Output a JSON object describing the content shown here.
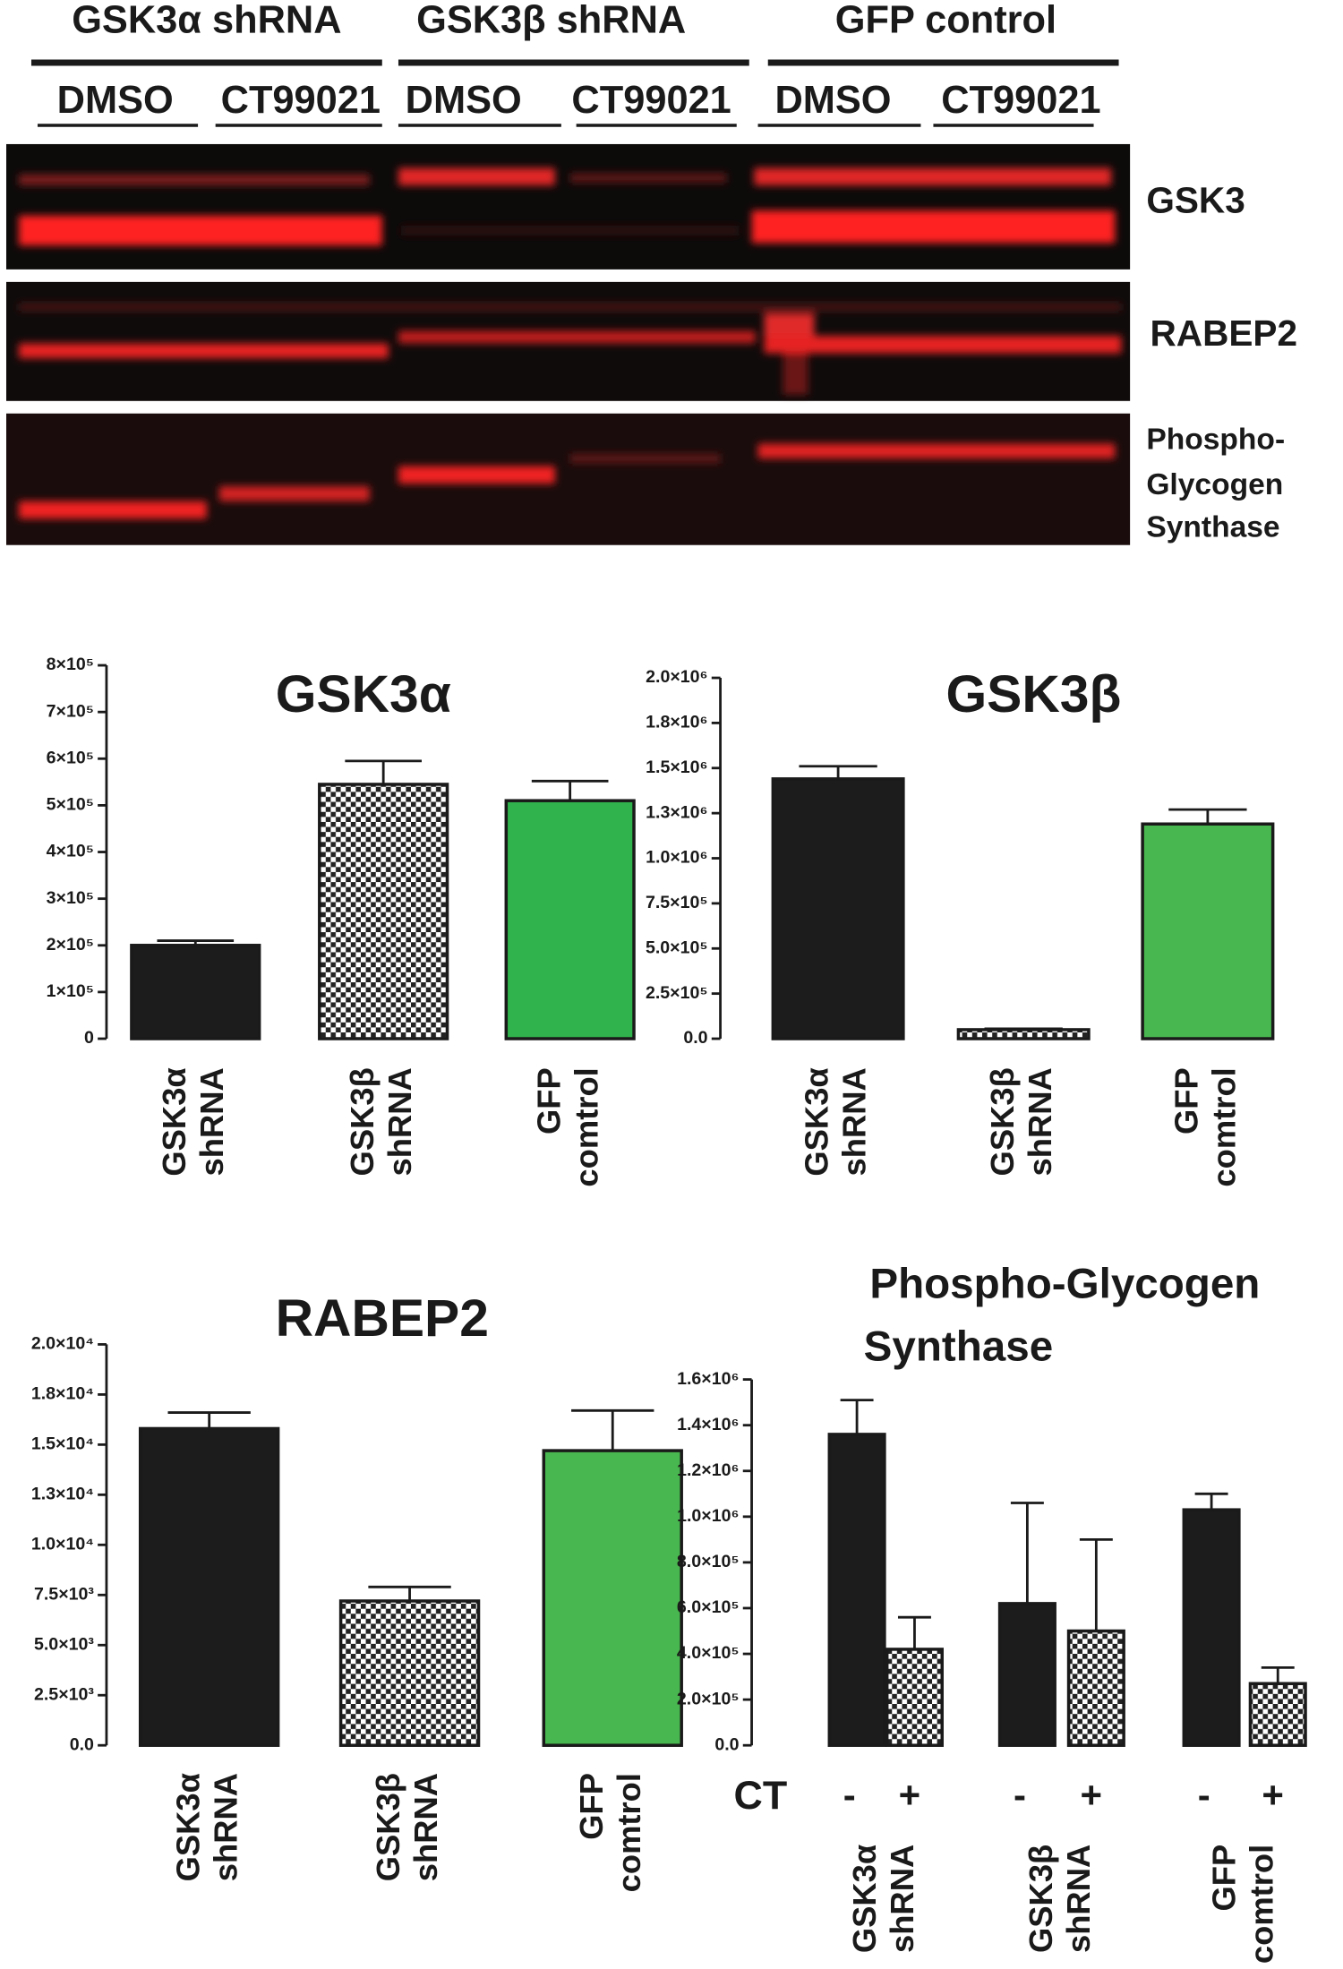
{
  "blot": {
    "groups": [
      "GSK3α shRNA",
      "GSK3β shRNA",
      "GFP control"
    ],
    "treatments": [
      "DMSO",
      "CT99021",
      "DMSO",
      "CT99021",
      "DMSO",
      "CT99021"
    ],
    "bands": [
      [
        "GSK3"
      ],
      [
        "RABEP2"
      ],
      [
        "Phospho-",
        "Glycogen",
        "Synthase"
      ]
    ]
  },
  "chart_data": [
    {
      "type": "bar",
      "title": [
        "GSK3α"
      ],
      "categories": [
        [
          "GSK3α",
          "shRNA"
        ],
        [
          "GSK3β",
          "shRNA"
        ],
        [
          "GFP",
          "comtrol"
        ]
      ],
      "series": [
        {
          "colors": [
            "#1c1c1c",
            "checker",
            "#30b24c"
          ],
          "values": [
            200000,
            545000,
            510000
          ],
          "errors": [
            10000,
            50000,
            42000
          ]
        }
      ],
      "ylim": [
        0,
        800000
      ],
      "yticks": [
        0,
        {
          "value": 100000,
          "label": "1×10⁵"
        },
        {
          "value": 200000,
          "label": "2×10⁵"
        },
        {
          "value": 300000,
          "label": "3×10⁵"
        },
        {
          "value": 400000,
          "label": "4×10⁵"
        },
        {
          "value": 500000,
          "label": "5×10⁵"
        },
        {
          "value": 600000,
          "label": "6×10⁵"
        },
        {
          "value": 700000,
          "label": "7×10⁵"
        },
        {
          "value": 800000,
          "label": "8×10⁵"
        }
      ]
    },
    {
      "type": "bar",
      "title": [
        "GSK3β"
      ],
      "categories": [
        [
          "GSK3α",
          "shRNA"
        ],
        [
          "GSK3β",
          "shRNA"
        ],
        [
          "GFP",
          "comtrol"
        ]
      ],
      "series": [
        {
          "colors": [
            "#1c1c1c",
            "checker",
            "#49b74f"
          ],
          "values": [
            1440000,
            50000,
            1190000
          ],
          "errors": [
            70000,
            5000,
            80000
          ]
        }
      ],
      "ylim": [
        0,
        2000000
      ],
      "yticks": [
        {
          "value": 0,
          "label": "0.0"
        },
        {
          "value": 250000,
          "label": "2.5×10⁵"
        },
        {
          "value": 500000,
          "label": "5.0×10⁵"
        },
        {
          "value": 750000,
          "label": "7.5×10⁵"
        },
        {
          "value": 1000000,
          "label": "1.0×10⁶"
        },
        {
          "value": 1250000,
          "label": "1.3×10⁶"
        },
        {
          "value": 1500000,
          "label": "1.5×10⁶"
        },
        {
          "value": 1750000,
          "label": "1.8×10⁶"
        },
        {
          "value": 2000000,
          "label": "2.0×10⁶"
        }
      ]
    },
    {
      "type": "bar",
      "title": [
        "RABEP2"
      ],
      "categories": [
        [
          "GSK3α",
          "shRNA"
        ],
        [
          "GSK3β",
          "shRNA"
        ],
        [
          "GFP",
          "comtrol"
        ]
      ],
      "series": [
        {
          "colors": [
            "#1c1c1c",
            "checker",
            "#49b74f"
          ],
          "values": [
            15800,
            7200,
            14700
          ],
          "errors": [
            800,
            700,
            2000
          ]
        }
      ],
      "ylim": [
        0,
        20000
      ],
      "yticks": [
        {
          "value": 0,
          "label": "0.0"
        },
        {
          "value": 2500,
          "label": "2.5×10³"
        },
        {
          "value": 5000,
          "label": "5.0×10³"
        },
        {
          "value": 7500,
          "label": "7.5×10³"
        },
        {
          "value": 10000,
          "label": "1.0×10⁴"
        },
        {
          "value": 12500,
          "label": "1.3×10⁴"
        },
        {
          "value": 15000,
          "label": "1.5×10⁴"
        },
        {
          "value": 17500,
          "label": "1.8×10⁴"
        },
        {
          "value": 20000,
          "label": "2.0×10⁴"
        }
      ]
    },
    {
      "type": "grouped_bar",
      "title": [
        "Phospho-Glycogen",
        "Synthase"
      ],
      "x_label": "CT",
      "categories": [
        [
          "GSK3α",
          "shRNA"
        ],
        [
          "GSK3β",
          "shRNA"
        ],
        [
          "GFP",
          "comtrol"
        ]
      ],
      "series": [
        {
          "name": "-",
          "color": "#1c1c1c",
          "values": [
            1360000,
            620000,
            1030000
          ],
          "errors": [
            150000,
            440000,
            70000
          ]
        },
        {
          "name": "+",
          "color": "checker",
          "values": [
            420000,
            500000,
            270000
          ],
          "errors": [
            140000,
            400000,
            70000
          ]
        }
      ],
      "ylim": [
        0,
        1600000
      ],
      "yticks": [
        {
          "value": 0,
          "label": "0.0"
        },
        {
          "value": 200000,
          "label": "2.0×10⁵"
        },
        {
          "value": 400000,
          "label": "4.0×10⁵"
        },
        {
          "value": 600000,
          "label": "6.0×10⁵"
        },
        {
          "value": 800000,
          "label": "8.0×10⁵"
        },
        {
          "value": 1000000,
          "label": "1.0×10⁶"
        },
        {
          "value": 1200000,
          "label": "1.2×10⁶"
        },
        {
          "value": 1400000,
          "label": "1.4×10⁶"
        },
        {
          "value": 1600000,
          "label": "1.6×10⁶"
        }
      ]
    }
  ]
}
